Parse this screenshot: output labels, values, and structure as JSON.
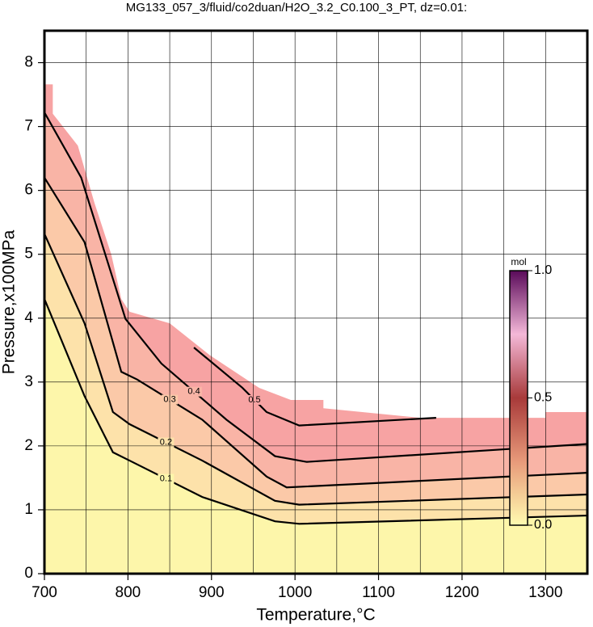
{
  "chart_data": {
    "type": "contour",
    "title": "MG133_057_3/fluid/co2duan/H2O_3.2_C0.100_3_PT, dz=0.01:",
    "xlabel": "Temperature,°C",
    "ylabel": "Pressure,x100MPa",
    "xlim": [
      700,
      1350
    ],
    "ylim": [
      0,
      8.5
    ],
    "xticks": [
      700,
      800,
      900,
      1000,
      1100,
      1200,
      1300
    ],
    "xminorticks": [
      750,
      850,
      950,
      1050,
      1150,
      1250
    ],
    "yticks": [
      0,
      1,
      2,
      3,
      4,
      5,
      6,
      7,
      8
    ],
    "grid": true,
    "extent": {
      "color": "#f7a3a3",
      "x": [
        700,
        700,
        710,
        710,
        740,
        760,
        780,
        792,
        802,
        850,
        898,
        957,
        995,
        1034,
        1034,
        1150,
        1300,
        1300,
        1350,
        1350,
        700
      ],
      "y": [
        0,
        7.66,
        7.66,
        7.2,
        6.7,
        5.8,
        5.0,
        4.3,
        4.1,
        3.92,
        3.42,
        2.91,
        2.72,
        2.72,
        2.59,
        2.44,
        2.44,
        2.53,
        2.53,
        0,
        0
      ]
    },
    "contours": [
      {
        "level": 0.4,
        "color": "#f9b4a6",
        "x": [
          700,
          744,
          797,
          840,
          918,
          976,
          1014,
          1350
        ],
        "y": [
          7.22,
          6.2,
          3.99,
          3.29,
          2.41,
          1.84,
          1.75,
          2.03
        ]
      },
      {
        "level": 0.3,
        "color": "#fbc9a8",
        "x": [
          700,
          748,
          792,
          811,
          889,
          966,
          990,
          1350
        ],
        "y": [
          6.2,
          5.19,
          3.16,
          3.04,
          2.41,
          1.52,
          1.35,
          1.58
        ]
      },
      {
        "level": 0.2,
        "color": "#fde2aa",
        "x": [
          700,
          748,
          782,
          802,
          889,
          976,
          1005,
          1350
        ],
        "y": [
          5.32,
          3.92,
          2.53,
          2.34,
          1.77,
          1.14,
          1.08,
          1.24
        ]
      },
      {
        "level": 0.1,
        "color": "#fdf6aa",
        "x": [
          700,
          748,
          782,
          802,
          889,
          976,
          1005,
          1350
        ],
        "y": [
          4.3,
          2.78,
          1.9,
          1.77,
          1.2,
          0.82,
          0.78,
          0.91
        ]
      },
      {
        "level": 0.5,
        "color": "#f7a3a3",
        "x": [
          879,
          937,
          966,
          1005,
          1169
        ],
        "y": [
          3.54,
          2.91,
          2.53,
          2.32,
          2.44
        ]
      }
    ],
    "colorbar": {
      "label": "mol",
      "lim": [
        0,
        1
      ],
      "ticks": [
        {
          "value": 0,
          "label": "0.0"
        },
        0.5,
        {
          "value": 1,
          "label": "1.0"
        }
      ],
      "colors": [
        "#fffbb0",
        "#e89a7a",
        "#a83a3a",
        "#f4b8d8",
        "#5a0a5a"
      ]
    }
  }
}
